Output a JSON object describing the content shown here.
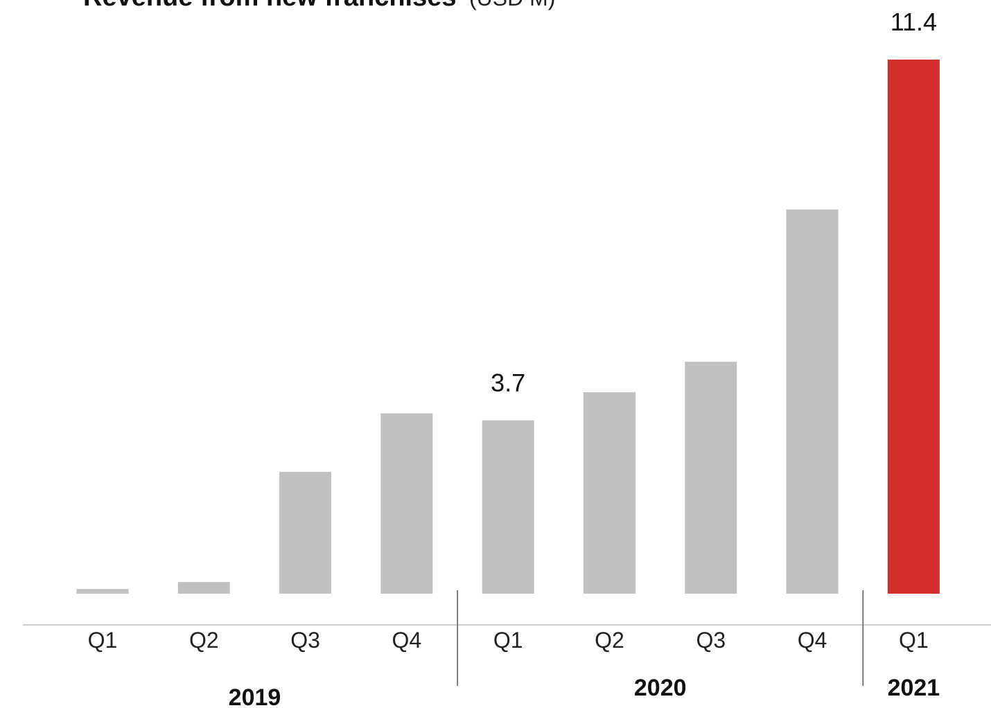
{
  "chart_data": {
    "type": "bar",
    "title": "Revenue from new franchises",
    "subtitle": "(USD M)",
    "categories": [
      "Q1",
      "Q2",
      "Q3",
      "Q4",
      "Q1",
      "Q2",
      "Q3",
      "Q4",
      "Q1"
    ],
    "groups": [
      {
        "label": "2019",
        "start": 0,
        "end": 3
      },
      {
        "label": "2020",
        "start": 4,
        "end": 7
      },
      {
        "label": "2021",
        "start": 8,
        "end": 8
      }
    ],
    "series": [
      {
        "values": [
          0.1,
          0.25,
          2.6,
          3.85,
          3.7,
          4.3,
          4.95,
          8.2,
          11.4
        ]
      }
    ],
    "data_labels": [
      {
        "index": 4,
        "text": "3.7"
      },
      {
        "index": 8,
        "text": "11.4"
      }
    ],
    "ylim": [
      0,
      11.4
    ],
    "grid": false,
    "colors": {
      "default_bar": "#c0c0c0",
      "highlight_bar": "#d32f2a",
      "highlight_index": 8,
      "axis": "#bdbdbd",
      "separator": "#555555"
    }
  }
}
